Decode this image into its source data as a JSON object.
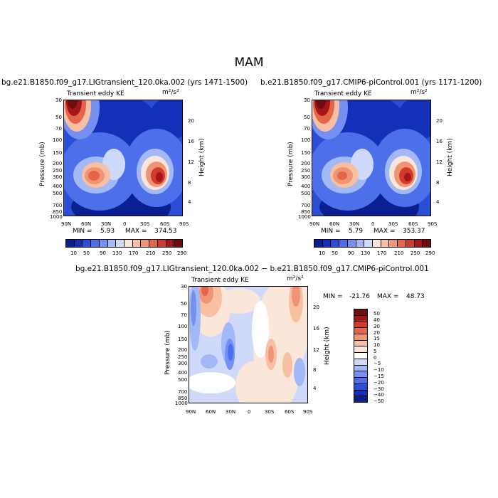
{
  "season": "MAM",
  "colors": {
    "scale_top": [
      "#0a1f91",
      "#1530b8",
      "#2a4fd6",
      "#4d70ea",
      "#7690f2",
      "#a3b8f7",
      "#cfdafb",
      "#fbe6da",
      "#f7c0a3",
      "#ef9576",
      "#e56548",
      "#d13b2c",
      "#a4161a",
      "#6e0c0f"
    ],
    "scale_diff": [
      "#0a1f91",
      "#1530b8",
      "#2a4fd6",
      "#4d70ea",
      "#7690f2",
      "#a3b8f7",
      "#cfdafb",
      "#ffffff",
      "#fbe6da",
      "#f7c0a3",
      "#ef9576",
      "#e56548",
      "#d13b2c",
      "#a4161a",
      "#6e0c0f"
    ]
  },
  "chart_data": [
    {
      "type": "heatmap",
      "title": "bg.e21.B1850.f09_g17.LIGtransient_120.0ka.002 (yrs 1471-1500)",
      "field": "Transient eddy KE",
      "units": "m²/s²",
      "ylabel": "Pressure (mb)",
      "y2label": "Height (km)",
      "x_ticks": [
        "90N",
        "60N",
        "30N",
        "0",
        "30S",
        "60S",
        "90S"
      ],
      "pressure_ticks": [
        "30",
        "50",
        "70",
        "100",
        "150",
        "200",
        "250",
        "300",
        "400",
        "500",
        "700",
        "850",
        "1000"
      ],
      "height_ticks": [
        "4",
        "8",
        "12",
        "16",
        "20"
      ],
      "min_label": "MIN =",
      "min": "5.93",
      "max_label": "MAX =",
      "max": "374.53",
      "colorbar_labels": [
        "10",
        "50",
        "90",
        "130",
        "170",
        "210",
        "250",
        "290"
      ]
    },
    {
      "type": "heatmap",
      "title": "b.e21.B1850.f09_g17.CMIP6-piControl.001 (yrs 1171-1200)",
      "field": "Transient eddy KE",
      "units": "m²/s²",
      "ylabel": "Pressure (mb)",
      "y2label": "Height (km)",
      "x_ticks": [
        "90N",
        "60N",
        "30N",
        "0",
        "30S",
        "60S",
        "90S"
      ],
      "pressure_ticks": [
        "30",
        "50",
        "70",
        "100",
        "150",
        "200",
        "250",
        "300",
        "400",
        "500",
        "700",
        "850",
        "1000"
      ],
      "height_ticks": [
        "4",
        "8",
        "12",
        "16",
        "20"
      ],
      "min_label": "MIN =",
      "min": "5.79",
      "max_label": "MAX =",
      "max": "353.37",
      "colorbar_labels": [
        "10",
        "50",
        "90",
        "130",
        "170",
        "210",
        "250",
        "290"
      ]
    },
    {
      "type": "heatmap",
      "title": "bg.e21.B1850.f09_g17.LIGtransient_120.0ka.002 − b.e21.B1850.f09_g17.CMIP6-piControl.001",
      "field": "Transient eddy KE",
      "units": "m²/s²",
      "ylabel": "Pressure (mb)",
      "y2label": "Height (km)",
      "x_ticks": [
        "90N",
        "60N",
        "30N",
        "0",
        "30S",
        "60S",
        "90S"
      ],
      "pressure_ticks": [
        "30",
        "50",
        "70",
        "100",
        "150",
        "200",
        "250",
        "300",
        "400",
        "500",
        "700",
        "850",
        "1000"
      ],
      "height_ticks": [
        "4",
        "8",
        "12",
        "16",
        "20"
      ],
      "min_label": "MIN =",
      "min": "-21.76",
      "max_label": "MAX =",
      "max": "48.73",
      "colorbar_labels": [
        "50",
        "40",
        "30",
        "20",
        "15",
        "10",
        "5",
        "0",
        "−5",
        "−10",
        "−15",
        "−20",
        "−30",
        "−40",
        "−50"
      ]
    }
  ]
}
